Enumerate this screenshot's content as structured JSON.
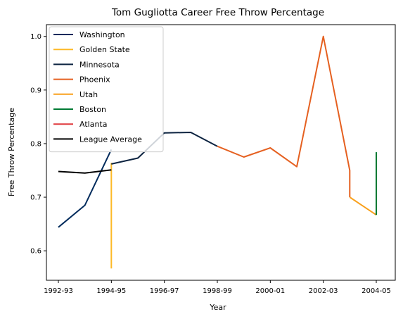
{
  "chart_data": {
    "type": "line",
    "title": "Tom Gugliotta Career Free Throw Percentage",
    "xlabel": "Year",
    "ylabel": "Free Throw Percentage",
    "x_categories": [
      "1992-93",
      "1993-94",
      "1994-95",
      "1995-96",
      "1996-97",
      "1997-98",
      "1998-99",
      "1999-00",
      "2000-01",
      "2001-02",
      "2002-03",
      "2003-04",
      "2004-05"
    ],
    "x_ticks": [
      "1992-93",
      "1994-95",
      "1996-97",
      "1998-99",
      "2000-01",
      "2002-03",
      "2004-05"
    ],
    "ylim": [
      0.545,
      1.022
    ],
    "y_ticks": [
      0.6,
      0.7,
      0.8,
      0.9,
      1.0
    ],
    "y_tick_labels": [
      "0.6",
      "0.7",
      "0.8",
      "0.9",
      "1.0"
    ],
    "grid": false,
    "legend_position": "top-left",
    "series": [
      {
        "name": "Washington",
        "color": "#002B5C",
        "points": [
          [
            "1992-93",
            0.644
          ],
          [
            "1993-94",
            0.685
          ],
          [
            "1994-95",
            0.789
          ]
        ]
      },
      {
        "name": "Golden State",
        "color": "#FDB927",
        "points": [
          [
            "1994-95",
            0.567
          ],
          [
            "1994-95",
            0.764
          ]
        ]
      },
      {
        "name": "Minnesota",
        "color": "#0C2340",
        "points": [
          [
            "1994-95",
            0.762
          ],
          [
            "1995-96",
            0.773
          ],
          [
            "1996-97",
            0.82
          ],
          [
            "1997-98",
            0.821
          ],
          [
            "1998-99",
            0.795
          ]
        ]
      },
      {
        "name": "Phoenix",
        "color": "#E56020",
        "points": [
          [
            "1998-99",
            0.795
          ],
          [
            "1999-00",
            0.775
          ],
          [
            "2000-01",
            0.792
          ],
          [
            "2001-02",
            0.757
          ],
          [
            "2002-03",
            1.0
          ],
          [
            "2003-04",
            0.75
          ],
          [
            "2003-04",
            0.7
          ]
        ]
      },
      {
        "name": "Utah",
        "color": "#F9A01B",
        "points": [
          [
            "2003-04",
            0.7
          ],
          [
            "2004-05",
            0.667
          ]
        ]
      },
      {
        "name": "Boston",
        "color": "#007A33",
        "points": [
          [
            "2004-05",
            0.667
          ],
          [
            "2004-05",
            0.784
          ]
        ]
      },
      {
        "name": "Atlanta",
        "color": "#E03A3E",
        "points": []
      },
      {
        "name": "League Average",
        "color": "#000000",
        "points": [
          [
            "1992-93",
            0.748
          ],
          [
            "1993-94",
            0.745
          ],
          [
            "1994-95",
            0.751
          ]
        ]
      }
    ]
  }
}
